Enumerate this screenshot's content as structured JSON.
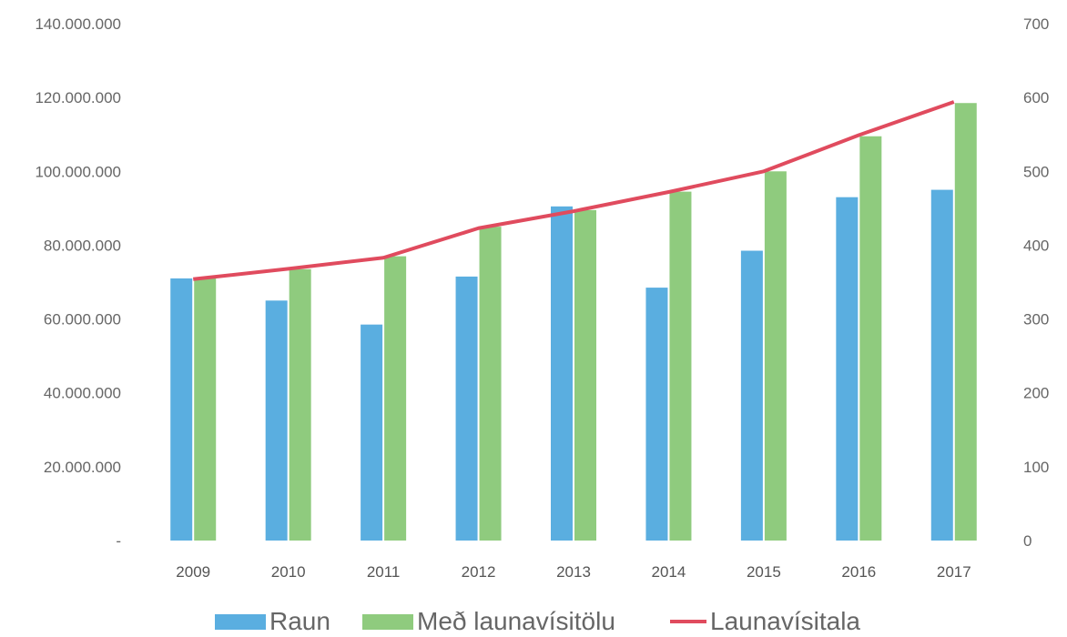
{
  "chart_data": {
    "type": "bar",
    "categories": [
      "2009",
      "2010",
      "2011",
      "2012",
      "2013",
      "2014",
      "2015",
      "2016",
      "2017"
    ],
    "series": [
      {
        "name": "Raun",
        "type": "bar",
        "axis": "left",
        "color": "#5aaee0",
        "values": [
          71000000,
          65000000,
          58500000,
          71500000,
          90500000,
          68500000,
          78500000,
          93000000,
          95000000
        ]
      },
      {
        "name": "Með launavísitölu",
        "type": "bar",
        "axis": "left",
        "color": "#8fcb7e",
        "values": [
          71000000,
          73500000,
          77000000,
          85000000,
          89500000,
          94500000,
          100000000,
          109500000,
          118500000
        ]
      },
      {
        "name": "Launavísitala",
        "type": "line",
        "axis": "right",
        "color": "#e04b5e",
        "values": [
          354,
          368,
          383,
          423,
          446,
          472,
          500,
          549,
          594
        ]
      }
    ],
    "left_axis": {
      "min": 0,
      "max": 140000000,
      "ticks": [
        "-",
        "20.000.000",
        "40.000.000",
        "60.000.000",
        "80.000.000",
        "100.000.000",
        "120.000.000",
        "140.000.000"
      ],
      "tick_values": [
        0,
        20000000,
        40000000,
        60000000,
        80000000,
        100000000,
        120000000,
        140000000
      ]
    },
    "right_axis": {
      "min": 0,
      "max": 700,
      "ticks": [
        "0",
        "100",
        "200",
        "300",
        "400",
        "500",
        "600",
        "700"
      ],
      "tick_values": [
        0,
        100,
        200,
        300,
        400,
        500,
        600,
        700
      ]
    },
    "grid": false,
    "legend_position": "bottom"
  },
  "legend": {
    "raun": "Raun",
    "med": "Með launavísitölu",
    "launa": "Launavísitala"
  },
  "colors": {
    "raun": "#5aaee0",
    "med": "#8fcb7e",
    "line": "#e04b5e"
  }
}
